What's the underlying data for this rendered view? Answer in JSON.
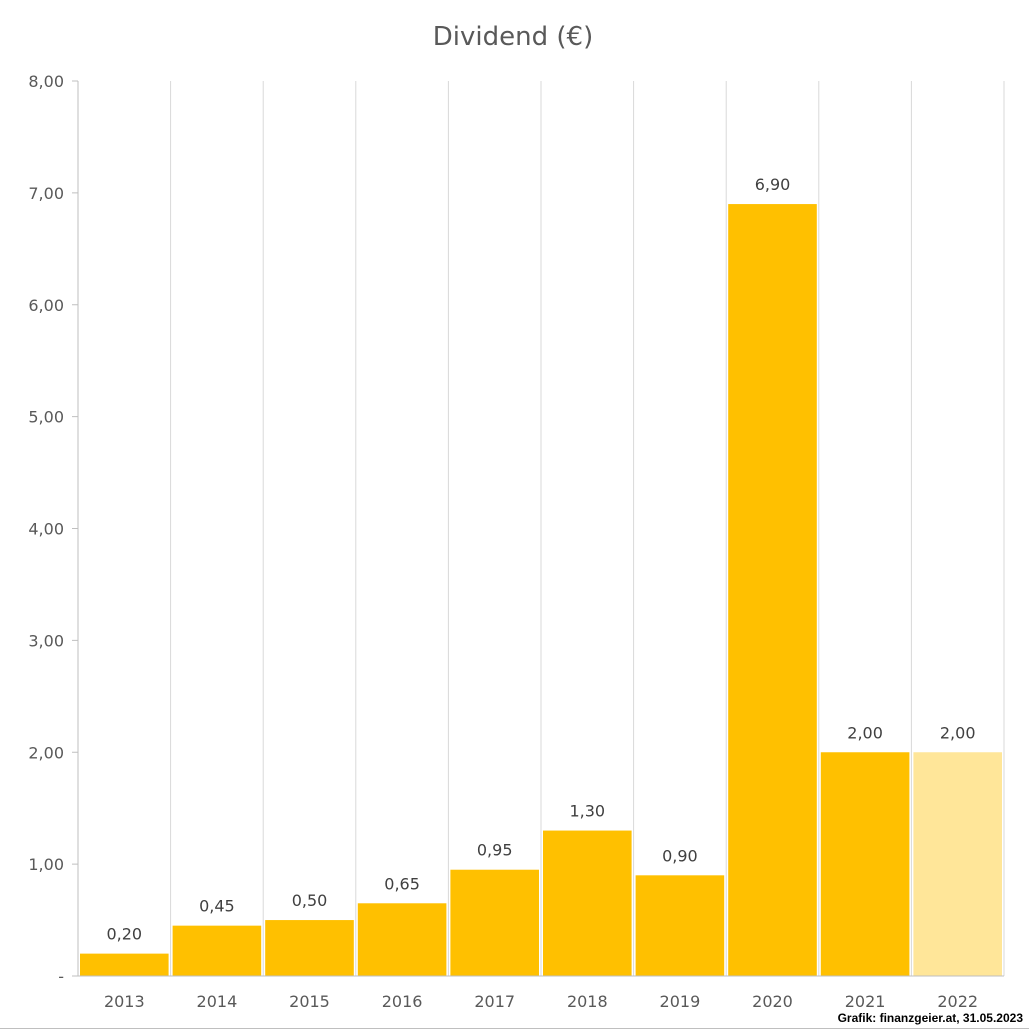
{
  "chart_data": {
    "type": "bar",
    "title": "Dividend (€)",
    "xlabel": "",
    "ylabel": "",
    "categories": [
      "2013",
      "2014",
      "2015",
      "2016",
      "2017",
      "2018",
      "2019",
      "2020",
      "2021",
      "2022"
    ],
    "values": [
      0.2,
      0.45,
      0.5,
      0.65,
      0.95,
      1.3,
      0.9,
      6.9,
      2.0,
      2.0
    ],
    "value_labels": [
      "0,20",
      "0,45",
      "0,50",
      "0,65",
      "0,95",
      "1,30",
      "0,90",
      "6,90",
      "2,00",
      "2,00"
    ],
    "ylim": [
      0,
      8
    ],
    "y_ticks": [
      0,
      1,
      2,
      3,
      4,
      5,
      6,
      7,
      8
    ],
    "y_tick_labels": [
      "-",
      "1,00",
      "2,00",
      "3,00",
      "4,00",
      "5,00",
      "6,00",
      "7,00",
      "8,00"
    ],
    "grid": "vertical",
    "legend": "none",
    "bar_colors": [
      "#FFC000",
      "#FFC000",
      "#FFC000",
      "#FFC000",
      "#FFC000",
      "#FFC000",
      "#FFC000",
      "#FFC000",
      "#FFC000",
      "#FFE699"
    ]
  },
  "source_note": "Grafik: finanzgeier.at, 31.05.2023"
}
